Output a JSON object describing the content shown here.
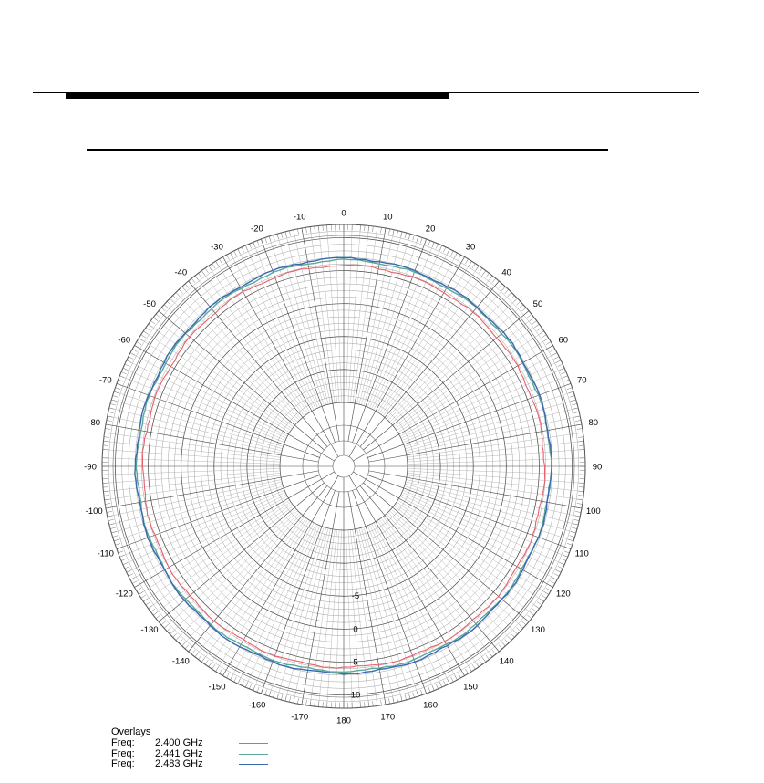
{
  "chart_data": {
    "type": "polar-line",
    "angle_ticks": [
      "0",
      "10",
      "20",
      "30",
      "40",
      "50",
      "60",
      "70",
      "80",
      "90",
      "100",
      "110",
      "120",
      "130",
      "140",
      "150",
      "160",
      "170",
      "180",
      "-170",
      "-160",
      "-150",
      "-140",
      "-130",
      "-120",
      "-110",
      "-100",
      "-90",
      "-80",
      "-70",
      "-60",
      "-50",
      "-40",
      "-30",
      "-20",
      "-10"
    ],
    "angle_tick_values": [
      0,
      10,
      20,
      30,
      40,
      50,
      60,
      70,
      80,
      90,
      100,
      110,
      120,
      130,
      140,
      150,
      160,
      170,
      180,
      -170,
      -160,
      -150,
      -140,
      -130,
      -120,
      -110,
      -100,
      -90,
      -80,
      -70,
      -60,
      -50,
      -40,
      -30,
      -20,
      -10
    ],
    "radial_ticks": [
      "-5",
      "0",
      "5",
      "10"
    ],
    "radial_tick_values": [
      -5,
      0,
      5,
      10
    ],
    "rlim": [
      -15,
      12
    ],
    "grid": true,
    "legend_title": "Overlays",
    "series": [
      {
        "label": "Freq:",
        "name": "2.400 GHz",
        "color": "#e8606e",
        "angles": [
          0,
          30,
          60,
          90,
          120,
          150,
          180,
          210,
          240,
          270,
          300,
          330
        ],
        "values": [
          5.8,
          5.8,
          5.7,
          5.8,
          5.8,
          5.9,
          5.8,
          5.8,
          5.9,
          5.8,
          5.7,
          5.8
        ]
      },
      {
        "label": "Freq:",
        "name": "2.441 GHz",
        "color": "#5aa89a",
        "angles": [
          0,
          30,
          60,
          90,
          120,
          150,
          180,
          210,
          240,
          270,
          300,
          330
        ],
        "values": [
          6.6,
          6.6,
          6.7,
          6.8,
          6.6,
          6.5,
          6.4,
          6.6,
          6.7,
          6.7,
          6.6,
          6.5
        ]
      },
      {
        "label": "Freq:",
        "name": "2.483 GHz",
        "color": "#3a6ab0",
        "angles": [
          0,
          30,
          60,
          90,
          120,
          150,
          180,
          210,
          240,
          270,
          300,
          330
        ],
        "values": [
          6.9,
          6.8,
          6.9,
          6.8,
          6.7,
          6.8,
          6.7,
          6.9,
          6.8,
          6.9,
          6.8,
          6.8
        ]
      }
    ]
  }
}
